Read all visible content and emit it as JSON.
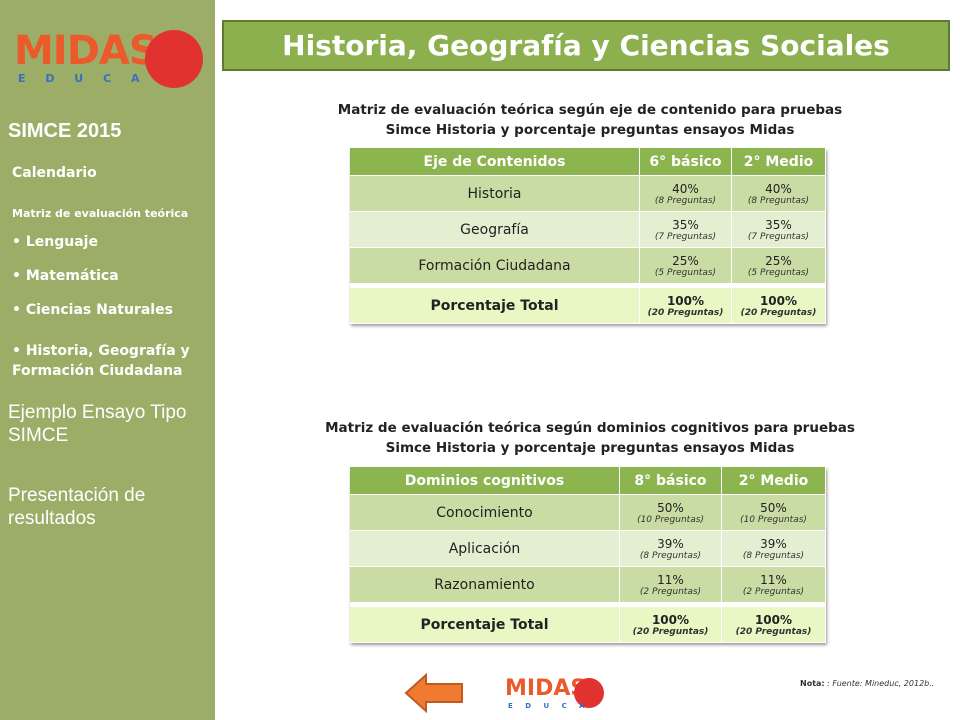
{
  "logo": {
    "name": "MIDAS",
    "sub": "E D U C A"
  },
  "sidebar": {
    "heading": "SIMCE 2015",
    "items": [
      "Calendario",
      "Matriz de evaluación teórica"
    ],
    "subitems": [
      "Lenguaje",
      "Matemática",
      "Ciencias Naturales",
      "Historia, Geografía y Formación Ciudadana"
    ],
    "links": [
      "Ejemplo Ensayo Tipo SIMCE",
      "Presentación de resultados"
    ]
  },
  "header": {
    "title": "Historia, Geografía y Ciencias Sociales"
  },
  "tables": [
    {
      "caption": [
        "Matriz de evaluación teórica según eje de contenido para pruebas",
        "Simce Historia y porcentaje preguntas ensayos Midas"
      ],
      "columns": [
        "Eje de Contenidos",
        "6° básico",
        "2° Medio"
      ],
      "rows": [
        [
          "Historia",
          "40%",
          "(8 Preguntas)",
          "40%",
          "(8 Preguntas)"
        ],
        [
          "Geografía",
          "35%",
          "(7 Preguntas)",
          "35%",
          "(7 Preguntas)"
        ],
        [
          "Formación Ciudadana",
          "25%",
          "(5 Preguntas)",
          "25%",
          "(5 Preguntas)"
        ]
      ],
      "total": [
        "Porcentaje Total",
        "100%",
        "(20 Preguntas)",
        "100%",
        "(20 Preguntas)"
      ]
    },
    {
      "caption": [
        "Matriz de evaluación teórica según dominios cognitivos para pruebas",
        "Simce Historia y porcentaje preguntas ensayos Midas"
      ],
      "columns": [
        "Dominios cognitivos",
        "8° básico",
        "2° Medio"
      ],
      "rows": [
        [
          "Conocimiento",
          "50%",
          "(10 Preguntas)",
          "50%",
          "(10 Preguntas)"
        ],
        [
          "Aplicación",
          "39%",
          "(8 Preguntas)",
          "39%",
          "(8 Preguntas)"
        ],
        [
          "Razonamiento",
          "11%",
          "(2 Preguntas)",
          "11%",
          "(2 Preguntas)"
        ]
      ],
      "total": [
        "Porcentaje Total",
        "100%",
        "(20 Preguntas)",
        "100%",
        "(20 Preguntas)"
      ]
    }
  ],
  "note": {
    "label": "Nota:",
    "text": ": Fuente: Mineduc, 2012b.."
  }
}
